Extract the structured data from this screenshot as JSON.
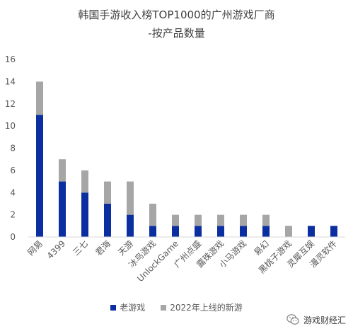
{
  "chart_data": {
    "type": "bar",
    "stacked": true,
    "title": "韩国手游收入榜TOP1000的广州游戏厂商",
    "subtitle": "-按产品数量",
    "categories": [
      "网易",
      "4399",
      "三七",
      "君海",
      "天游",
      "冰鸟游戏",
      "UnlockGame",
      "广州点盛",
      "露珠游戏",
      "小马游戏",
      "易幻",
      "黑桃子游戏",
      "灵犀互娱",
      "漫灵软件"
    ],
    "series": [
      {
        "name": "老游戏",
        "color": "#0b2ea0",
        "values": [
          11,
          5,
          4,
          3,
          2,
          1,
          1,
          1,
          1,
          1,
          1,
          0,
          1,
          1
        ]
      },
      {
        "name": "2022年上线的新游",
        "color": "#a6a6a6",
        "values": [
          3,
          2,
          2,
          2,
          3,
          2,
          1,
          1,
          1,
          1,
          1,
          1,
          0,
          0
        ]
      }
    ],
    "yticks": [
      "0",
      "2",
      "4",
      "6",
      "8",
      "10",
      "12",
      "14",
      "16"
    ],
    "ylim": [
      0,
      16
    ],
    "grid": false,
    "legend_position": "bottom"
  },
  "watermark": {
    "text": "游戏财经汇",
    "icon": "wechat-icon"
  }
}
